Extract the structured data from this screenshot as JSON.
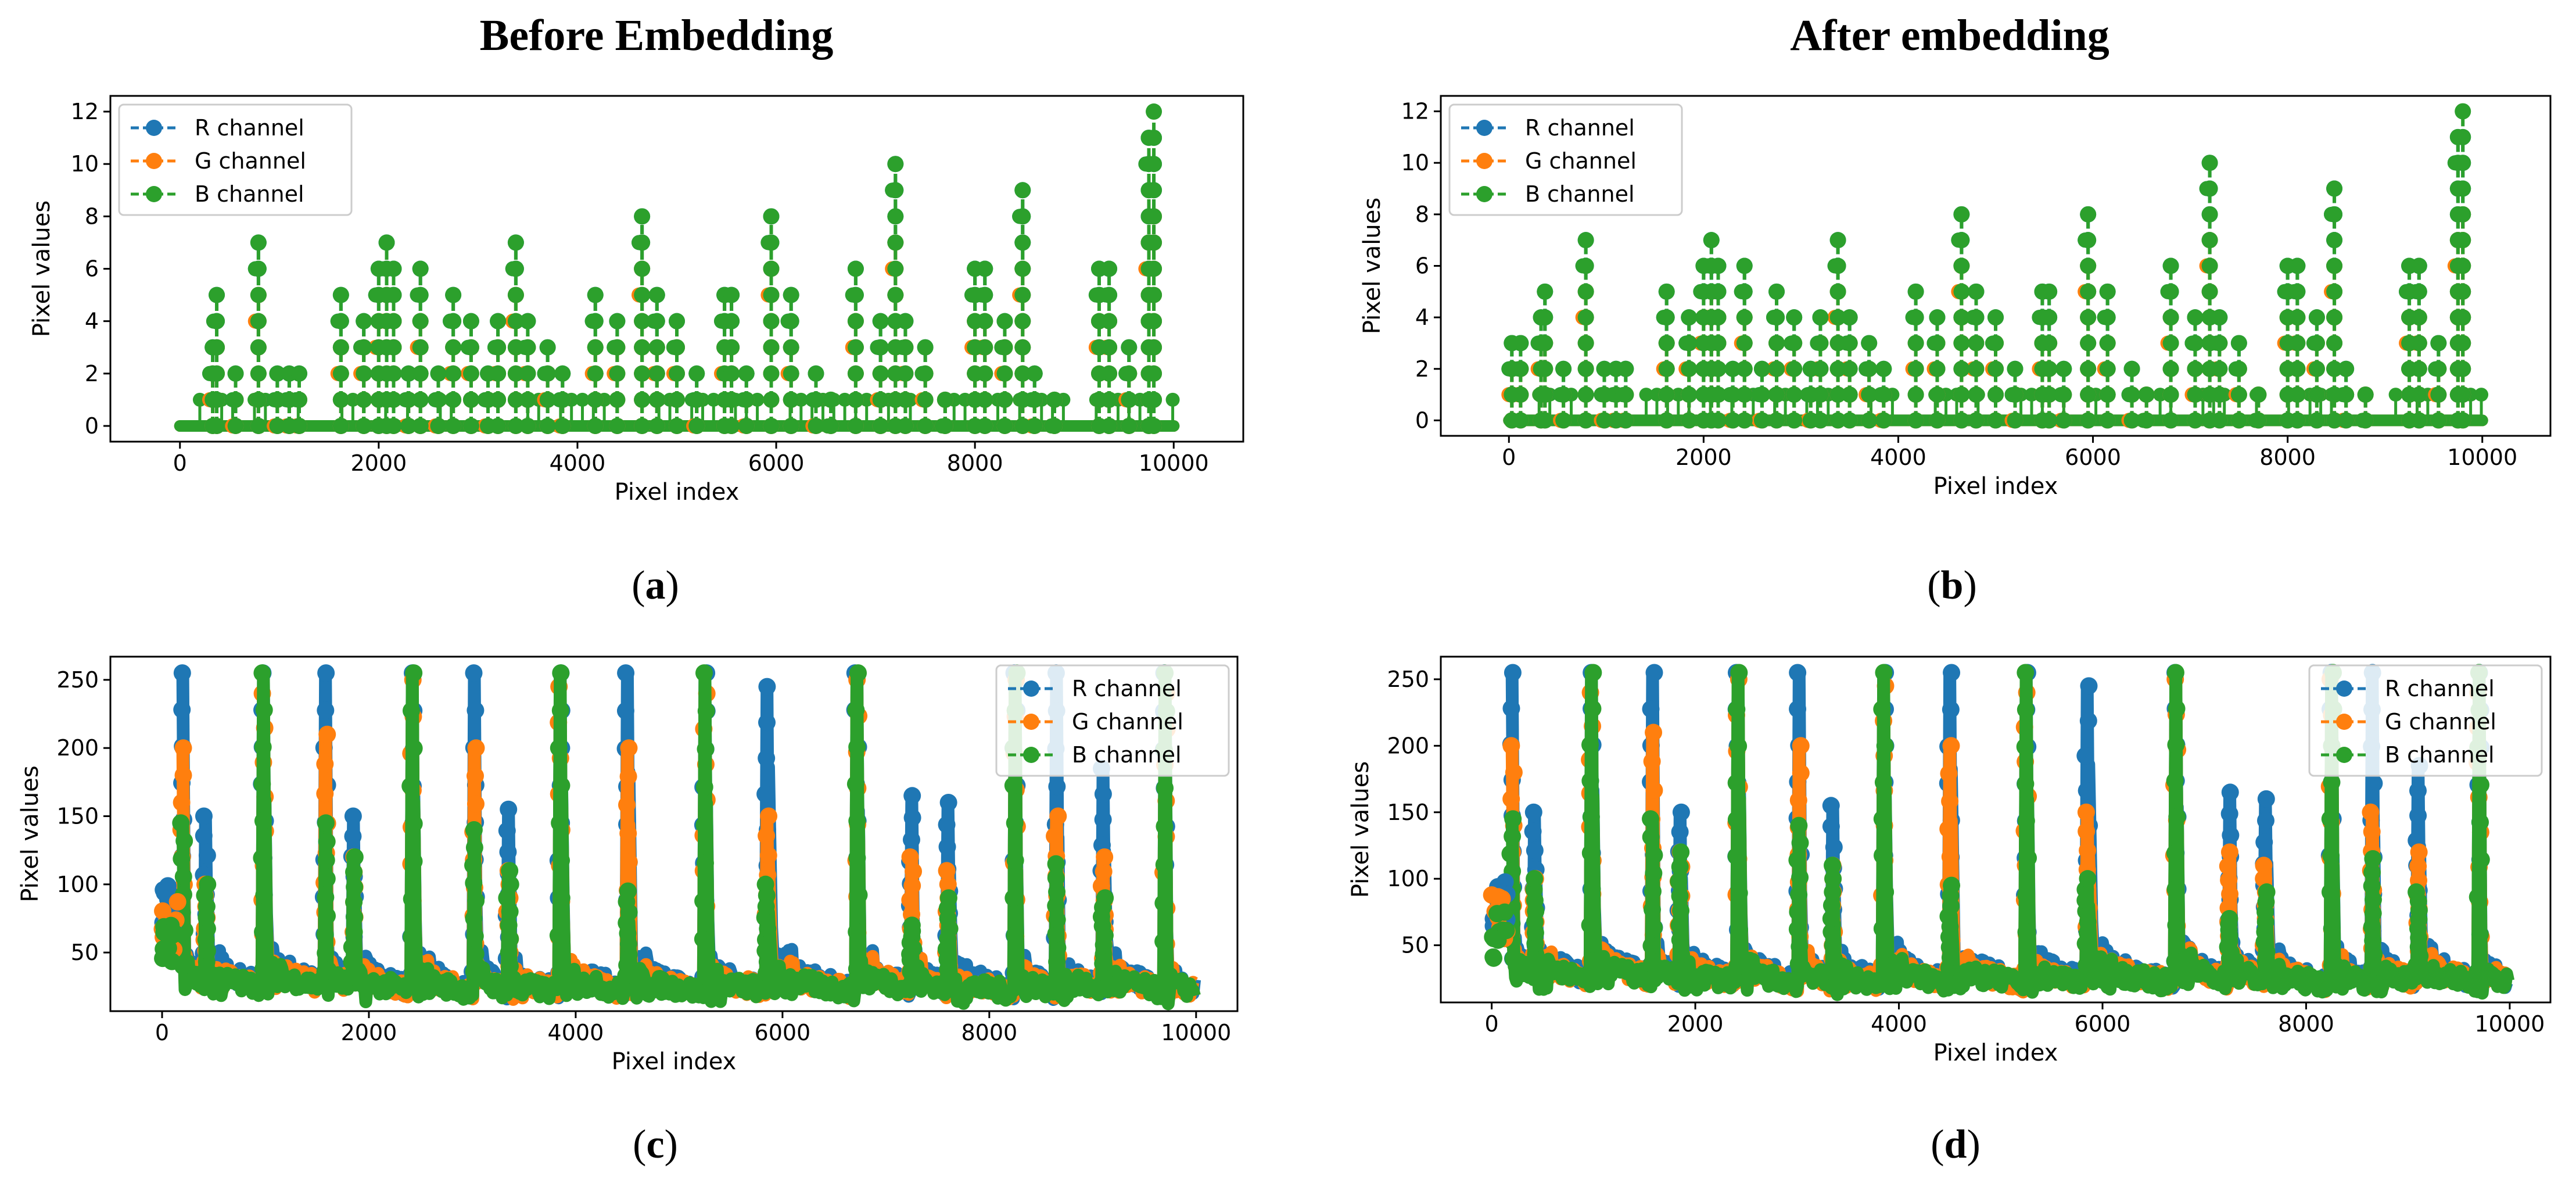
{
  "titles": {
    "left": "Before Embedding",
    "right": "After embedding"
  },
  "captions": [
    {
      "open": "(",
      "letter": "a",
      "close": ")"
    },
    {
      "open": "(",
      "letter": "b",
      "close": ")"
    },
    {
      "open": "(",
      "letter": "c",
      "close": ")"
    },
    {
      "open": "(",
      "letter": "d",
      "close": ")"
    }
  ],
  "colors": {
    "R channel": "#1f77b4",
    "G channel": "#ff7f0e",
    "B channel": "#2ca02c",
    "axes": "#000000"
  },
  "chart_data": [
    {
      "id": "a",
      "type": "line",
      "xlabel": "Pixel index",
      "ylabel": "Pixel values",
      "xlim": [
        -700,
        10700
      ],
      "ylim": [
        -0.6,
        12.6
      ],
      "xticks": [
        0,
        2000,
        4000,
        6000,
        8000,
        10000
      ],
      "yticks": [
        0,
        2,
        4,
        6,
        8,
        10,
        12
      ],
      "legend_loc": "upper left",
      "series_names": [
        "R channel",
        "G channel",
        "B channel"
      ],
      "peaks": {
        "x": [
          330,
          370,
          560,
          790,
          980,
          1100,
          1200,
          1620,
          1850,
          2000,
          2080,
          2150,
          2300,
          2420,
          2600,
          2750,
          2930,
          3100,
          3200,
          3380,
          3500,
          3700,
          3850,
          4180,
          4400,
          4650,
          4800,
          5000,
          5200,
          5480,
          5550,
          5700,
          5950,
          6150,
          6400,
          6550,
          6800,
          7050,
          7200,
          7300,
          7500,
          7700,
          8000,
          8100,
          8300,
          8480,
          8600,
          8800,
          9250,
          9350,
          9550,
          9750,
          9800
        ],
        "b": [
          3,
          5,
          2,
          7,
          2,
          2,
          2,
          5,
          4,
          6,
          7,
          6,
          2,
          6,
          2,
          5,
          4,
          2,
          4,
          7,
          4,
          3,
          2,
          5,
          4,
          8,
          5,
          4,
          2,
          5,
          5,
          2,
          8,
          5,
          2,
          1,
          6,
          4,
          10,
          4,
          3,
          1,
          6,
          6,
          4,
          9,
          2,
          1,
          6,
          6,
          3,
          11,
          12
        ],
        "r": [
          3,
          5,
          2,
          7,
          2,
          2,
          2,
          5,
          4,
          6,
          7,
          6,
          2,
          6,
          2,
          5,
          4,
          2,
          4,
          7,
          4,
          3,
          2,
          5,
          4,
          8,
          5,
          4,
          2,
          5,
          5,
          2,
          8,
          5,
          2,
          1,
          6,
          4,
          10,
          4,
          3,
          1,
          6,
          6,
          4,
          9,
          2,
          1,
          6,
          6,
          3,
          11,
          11
        ],
        "g": [
          2,
          3,
          1,
          5,
          1,
          1,
          1,
          3,
          3,
          4,
          5,
          4,
          1,
          4,
          1,
          3,
          3,
          1,
          3,
          5,
          3,
          2,
          1,
          3,
          3,
          6,
          3,
          3,
          1,
          3,
          3,
          1,
          6,
          3,
          1,
          1,
          4,
          2,
          7,
          3,
          2,
          1,
          4,
          4,
          3,
          6,
          1,
          1,
          4,
          4,
          2,
          7,
          8
        ]
      }
    },
    {
      "id": "b",
      "type": "line",
      "xlabel": "Pixel index",
      "ylabel": "Pixel values",
      "xlim": [
        -700,
        10700
      ],
      "ylim": [
        -0.6,
        12.6
      ],
      "xticks": [
        0,
        2000,
        4000,
        6000,
        8000,
        10000
      ],
      "yticks": [
        0,
        2,
        4,
        6,
        8,
        10,
        12
      ],
      "legend_loc": "upper left",
      "series_names": [
        "R channel",
        "G channel",
        "B channel"
      ],
      "peaks": {
        "x": [
          30,
          120,
          330,
          370,
          560,
          790,
          980,
          1100,
          1200,
          1620,
          1850,
          2000,
          2080,
          2150,
          2300,
          2420,
          2600,
          2750,
          2930,
          3100,
          3200,
          3380,
          3500,
          3700,
          3850,
          4180,
          4400,
          4650,
          4800,
          5000,
          5200,
          5480,
          5550,
          5700,
          5950,
          6150,
          6400,
          6550,
          6800,
          7050,
          7200,
          7300,
          7500,
          7700,
          8000,
          8100,
          8300,
          8480,
          8600,
          8800,
          9250,
          9350,
          9550,
          9750,
          9800
        ],
        "b": [
          3,
          3,
          4,
          5,
          2,
          7,
          2,
          2,
          2,
          5,
          4,
          6,
          7,
          6,
          2,
          6,
          2,
          5,
          4,
          2,
          4,
          7,
          4,
          3,
          2,
          5,
          4,
          8,
          5,
          4,
          2,
          5,
          5,
          2,
          8,
          5,
          2,
          1,
          6,
          4,
          10,
          4,
          3,
          1,
          6,
          6,
          4,
          9,
          2,
          1,
          6,
          6,
          3,
          11,
          12
        ],
        "r": [
          3,
          3,
          4,
          5,
          2,
          7,
          2,
          2,
          2,
          5,
          4,
          6,
          7,
          6,
          2,
          6,
          2,
          5,
          4,
          2,
          4,
          7,
          4,
          3,
          2,
          5,
          4,
          8,
          5,
          4,
          2,
          5,
          5,
          2,
          8,
          5,
          2,
          1,
          6,
          4,
          10,
          4,
          3,
          1,
          6,
          6,
          4,
          9,
          2,
          1,
          6,
          6,
          3,
          11,
          11
        ],
        "g": [
          2,
          2,
          3,
          3,
          1,
          5,
          1,
          1,
          1,
          3,
          3,
          4,
          5,
          4,
          1,
          4,
          1,
          3,
          3,
          1,
          3,
          5,
          3,
          2,
          1,
          3,
          3,
          6,
          3,
          3,
          1,
          3,
          3,
          1,
          6,
          3,
          1,
          1,
          4,
          2,
          7,
          3,
          2,
          1,
          4,
          4,
          3,
          6,
          1,
          1,
          4,
          4,
          2,
          7,
          8
        ]
      }
    },
    {
      "id": "c",
      "type": "line",
      "xlabel": "Pixel index",
      "ylabel": "Pixel values",
      "xlim": [
        -500,
        10400
      ],
      "ylim": [
        7,
        267
      ],
      "xticks": [
        0,
        2000,
        4000,
        6000,
        8000,
        10000
      ],
      "yticks": [
        50,
        100,
        150,
        200,
        250
      ],
      "legend_loc": "upper right",
      "series_names": [
        "R channel",
        "G channel",
        "B channel"
      ],
      "peaks": {
        "x": [
          200,
          420,
          980,
          1580,
          1850,
          2420,
          3020,
          3350,
          3850,
          4500,
          5250,
          5850,
          6720,
          7250,
          7600,
          8250,
          8650,
          9100,
          9700
        ],
        "r": [
          255,
          150,
          255,
          255,
          150,
          255,
          255,
          155,
          255,
          255,
          255,
          245,
          255,
          165,
          160,
          255,
          255,
          185,
          255
        ],
        "g": [
          200,
          100,
          240,
          210,
          120,
          250,
          200,
          110,
          245,
          200,
          240,
          150,
          250,
          120,
          110,
          250,
          150,
          120,
          240
        ],
        "b": [
          145,
          100,
          255,
          145,
          120,
          255,
          140,
          110,
          255,
          95,
          255,
          100,
          255,
          70,
          90,
          255,
          115,
          90,
          255
        ],
        "base": [
          40,
          35,
          38,
          36,
          32,
          34,
          36,
          30,
          35,
          33,
          32,
          35,
          38,
          36,
          30,
          35,
          33,
          35,
          30
        ],
        "floor": [
          25,
          22,
          22,
          22,
          20,
          18,
          18,
          18,
          18,
          18,
          20,
          18,
          20,
          20,
          18,
          18,
          20,
          18,
          20
        ]
      }
    },
    {
      "id": "d",
      "type": "line",
      "xlabel": "Pixel index",
      "ylabel": "Pixel values",
      "xlim": [
        -500,
        10400
      ],
      "ylim": [
        7,
        267
      ],
      "xticks": [
        0,
        2000,
        4000,
        6000,
        8000,
        10000
      ],
      "yticks": [
        50,
        100,
        150,
        200,
        250
      ],
      "legend_loc": "upper right",
      "series_names": [
        "R channel",
        "G channel",
        "B channel"
      ],
      "peaks": {
        "x": [
          200,
          420,
          980,
          1580,
          1850,
          2420,
          3020,
          3350,
          3850,
          4500,
          5250,
          5850,
          6720,
          7250,
          7600,
          8250,
          8650,
          9100,
          9700
        ],
        "r": [
          255,
          150,
          255,
          255,
          150,
          255,
          255,
          155,
          255,
          255,
          255,
          245,
          255,
          165,
          160,
          255,
          255,
          185,
          255
        ],
        "g": [
          200,
          100,
          240,
          210,
          120,
          250,
          200,
          110,
          245,
          200,
          240,
          150,
          250,
          120,
          110,
          250,
          150,
          120,
          240
        ],
        "b": [
          145,
          100,
          255,
          145,
          120,
          255,
          140,
          110,
          255,
          95,
          255,
          100,
          255,
          70,
          90,
          255,
          115,
          90,
          255
        ],
        "base": [
          40,
          35,
          38,
          36,
          32,
          34,
          36,
          30,
          35,
          33,
          32,
          35,
          38,
          36,
          30,
          35,
          33,
          35,
          30
        ],
        "floor": [
          25,
          22,
          22,
          22,
          20,
          18,
          18,
          18,
          18,
          18,
          20,
          18,
          20,
          20,
          18,
          18,
          20,
          18,
          20
        ]
      }
    }
  ]
}
